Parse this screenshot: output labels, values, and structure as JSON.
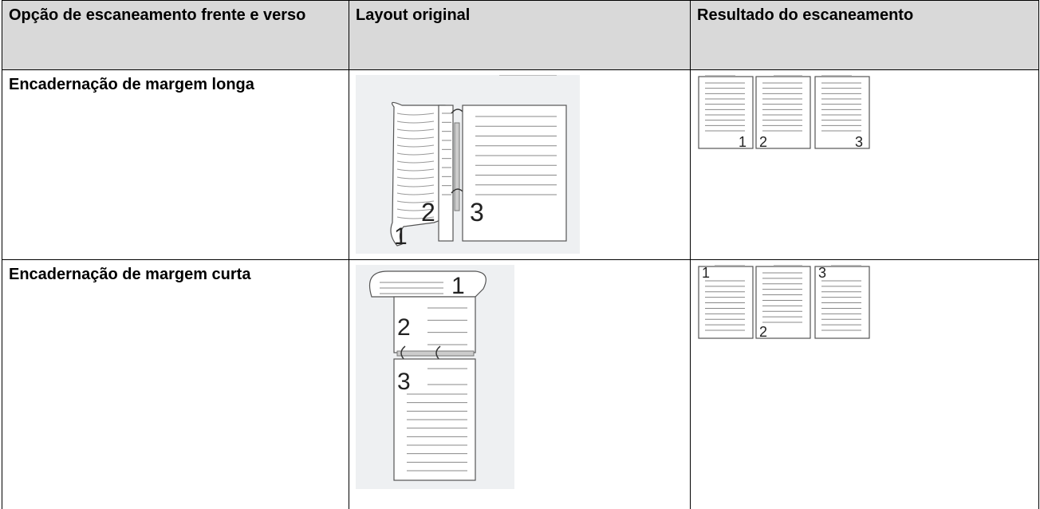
{
  "table": {
    "header": [
      "Opção de escaneamento frente e verso",
      "Layout original",
      "Resultado do escaneamento"
    ],
    "rows": [
      {
        "option": "Encadernação de margem longa",
        "original_labels": [
          "2",
          "3",
          "1"
        ],
        "result_labels": [
          "1",
          "2",
          "3"
        ]
      },
      {
        "option": "Encadernação de margem curta",
        "original_labels": [
          "1",
          "2",
          "3"
        ],
        "result_labels": [
          "1",
          "2",
          "3"
        ]
      }
    ]
  }
}
